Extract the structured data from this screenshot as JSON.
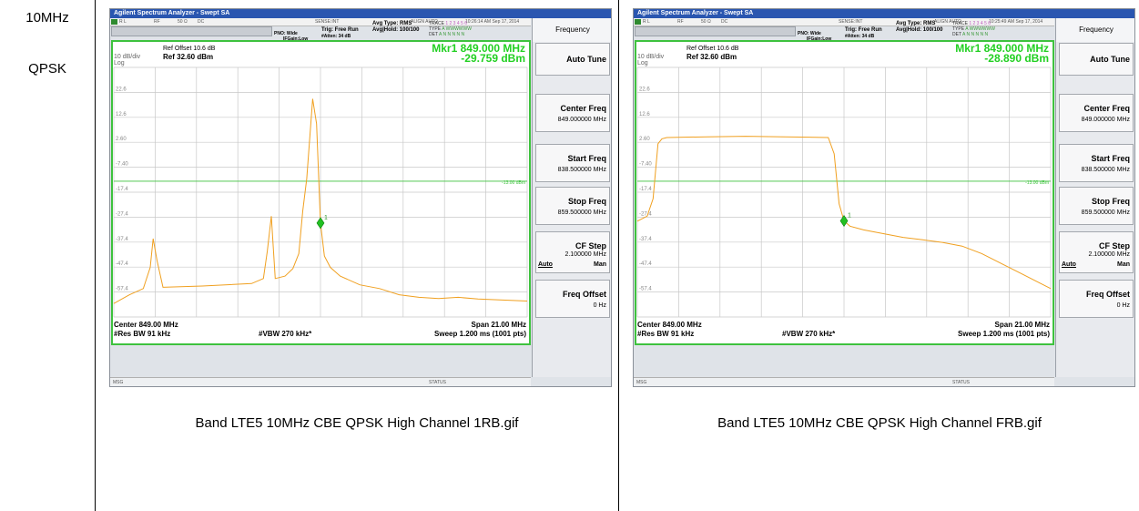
{
  "left": {
    "bandwidth": "10MHz",
    "modulation": "QPSK"
  },
  "panels": [
    {
      "caption": "Band LTE5 10MHz CBE QPSK High Channel 1RB.gif",
      "title": "Agilent Spectrum Analyzer - Swept SA",
      "status": {
        "rl": "R L",
        "rf": "RF",
        "ohm": "50 Ω",
        "dc": "DC",
        "sense": "SENSE:INT",
        "align": "ALIGN AUTO",
        "time": "10:26:14 AM Sep 17, 2014"
      },
      "pno": "PNO: Wide",
      "ifgain": "IFGain:Low",
      "trig": "Trig: Free Run",
      "atten": "#Atten: 34 dB",
      "avg_type": "Avg Type: RMS",
      "avg_hold": "Avg|Hold: 100/100",
      "trace_label": "TRACE",
      "trace_nums": "1 2 3 4 5 6",
      "type_label": "TYPE",
      "type_vals": "A WWWWWW",
      "det_label": "DET",
      "det_vals": "A N N N N N",
      "ref_offset": "Ref Offset 10.6 dB",
      "div": "10 dB/div",
      "log": "Log",
      "ref_level": "Ref 32.60 dBm",
      "marker_freq": "Mkr1 849.000 MHz",
      "marker_amp": "-29.759 dBm",
      "center": "Center 849.00 MHz",
      "span": "Span 21.00 MHz",
      "rbw": "#Res BW 91 kHz",
      "vbw": "#VBW 270 kHz*",
      "sweep": "Sweep  1.200 ms (1001 pts)",
      "msg": "MSG",
      "status_text": "STATUS",
      "limit_label": "-13.00 dBm",
      "marker_num": "1",
      "y_ticks": [
        "22.6",
        "12.6",
        "2.60",
        "-7.40",
        "-17.4",
        "-27.4",
        "-37.4",
        "-47.4",
        "-57.4"
      ],
      "chart_data": {
        "type": "line",
        "x_range_mhz": [
          838.5,
          859.5
        ],
        "ylim": [
          -67.4,
          32.6
        ],
        "limit_dbm": -13.0,
        "marker": {
          "x_mhz": 849.0,
          "y_dbm": -29.759
        },
        "x_mhz": [
          838.5,
          839.3,
          840.0,
          840.35,
          840.5,
          840.7,
          841.0,
          843.0,
          845.5,
          846.1,
          846.3,
          846.5,
          846.7,
          847.2,
          847.6,
          847.9,
          848.1,
          848.3,
          848.6,
          848.8,
          849.0,
          849.2,
          849.5,
          850.0,
          851.0,
          852.0,
          853.0,
          854.0,
          855.0,
          856.0,
          857.0,
          859.5
        ],
        "y_dbm": [
          -62.0,
          -58.5,
          -56.0,
          -47.5,
          -36.0,
          -45.0,
          -55.5,
          -55.0,
          -54.0,
          -52.0,
          -41.0,
          -27.0,
          -52.0,
          -51.0,
          -48.0,
          -42.0,
          -25.0,
          -12.0,
          20.0,
          10.0,
          -29.759,
          -43.0,
          -47.5,
          -51.0,
          -54.5,
          -56.0,
          -58.5,
          -59.5,
          -60.0,
          -59.5,
          -60.2,
          -61.0
        ]
      }
    },
    {
      "caption": "Band LTE5 10MHz CBE QPSK High Channel FRB.gif",
      "title": "Agilent Spectrum Analyzer - Swept SA",
      "status": {
        "rl": "R L",
        "rf": "RF",
        "ohm": "50 Ω",
        "dc": "DC",
        "sense": "SENSE:INT",
        "align": "ALIGN AUTO",
        "time": "10:25:49 AM Sep 17, 2014"
      },
      "pno": "PNO: Wide",
      "ifgain": "IFGain:Low",
      "trig": "Trig: Free Run",
      "atten": "#Atten: 34 dB",
      "avg_type": "Avg Type: RMS",
      "avg_hold": "Avg|Hold: 100/100",
      "trace_label": "TRACE",
      "trace_nums": "1 2 3 4 5 6",
      "type_label": "TYPE",
      "type_vals": "A WWWWWW",
      "det_label": "DET",
      "det_vals": "A N N N N N",
      "ref_offset": "Ref Offset 10.6 dB",
      "div": "10 dB/div",
      "log": "Log",
      "ref_level": "Ref 32.60 dBm",
      "marker_freq": "Mkr1 849.000 MHz",
      "marker_amp": "-28.890 dBm",
      "center": "Center 849.00 MHz",
      "span": "Span 21.00 MHz",
      "rbw": "#Res BW 91 kHz",
      "vbw": "#VBW 270 kHz*",
      "sweep": "Sweep  1.200 ms (1001 pts)",
      "msg": "MSG",
      "status_text": "STATUS",
      "limit_label": "-13.00 dBm",
      "marker_num": "1",
      "y_ticks": [
        "22.6",
        "12.6",
        "2.60",
        "-7.40",
        "-17.4",
        "-27.4",
        "-37.4",
        "-47.4",
        "-57.4"
      ],
      "chart_data": {
        "type": "line",
        "x_range_mhz": [
          838.5,
          859.5
        ],
        "ylim": [
          -67.4,
          32.6
        ],
        "limit_dbm": -13.0,
        "marker": {
          "x_mhz": 849.0,
          "y_dbm": -28.89
        },
        "x_mhz": [
          838.5,
          839.0,
          839.3,
          839.55,
          839.75,
          840.0,
          842.0,
          844.0,
          846.0,
          848.2,
          848.5,
          848.75,
          849.0,
          849.3,
          850.0,
          851.0,
          852.0,
          853.0,
          854.0,
          855.0,
          856.0,
          857.0,
          858.0,
          859.0,
          859.5
        ],
        "y_dbm": [
          -29.0,
          -27.0,
          -20.0,
          2.0,
          4.0,
          4.5,
          4.8,
          5.0,
          4.8,
          4.5,
          -2.0,
          -22.0,
          -28.89,
          -31.0,
          -32.5,
          -34.0,
          -35.5,
          -36.5,
          -37.5,
          -39.0,
          -42.0,
          -46.0,
          -50.0,
          -54.0,
          -56.0
        ]
      }
    }
  ],
  "menu": {
    "title": "Frequency",
    "auto_tune": "Auto Tune",
    "center_freq_label": "Center Freq",
    "center_freq_value": "849.000000 MHz",
    "start_freq_label": "Start Freq",
    "start_freq_value": "838.500000 MHz",
    "stop_freq_label": "Stop Freq",
    "stop_freq_value": "859.500000 MHz",
    "cf_step_label": "CF Step",
    "cf_step_value": "2.100000 MHz",
    "cf_step_auto": "Auto",
    "cf_step_man": "Man",
    "freq_offset_label": "Freq Offset",
    "freq_offset_value": "0 Hz"
  },
  "colors": {
    "trace": "#f0a020",
    "marker": "#22c022",
    "limit": "#3ec23e",
    "border": "#3ec23e"
  }
}
